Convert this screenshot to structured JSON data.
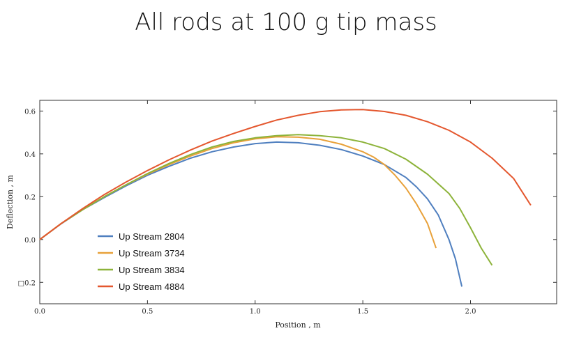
{
  "slide": {
    "title": "All rods at 100 g tip mass"
  },
  "chart_data": {
    "type": "line",
    "title": "All rods at 100 g tip mass",
    "xlabel": "Position , m",
    "ylabel": "Deflection , m",
    "xlim": [
      0,
      2.4
    ],
    "ylim": [
      -0.3,
      0.65
    ],
    "xticks": [
      0.0,
      0.5,
      1.0,
      1.5,
      2.0
    ],
    "xtick_labels": [
      "0.0",
      "0.5",
      "1.0",
      "1.5",
      "2.0"
    ],
    "yticks": [
      -0.2,
      0.0,
      0.2,
      0.4,
      0.6
    ],
    "ytick_labels": [
      "□0.2",
      "0.0",
      "0.2",
      "0.4",
      "0.6"
    ],
    "grid": false,
    "legend_position": "bottom-left",
    "series": [
      {
        "name": "Up Stream 2804",
        "color": "#4f7fbf",
        "x": [
          0,
          0.1,
          0.2,
          0.3,
          0.4,
          0.5,
          0.6,
          0.7,
          0.8,
          0.9,
          1.0,
          1.1,
          1.2,
          1.3,
          1.4,
          1.5,
          1.6,
          1.7,
          1.75,
          1.8,
          1.85,
          1.9,
          1.93,
          1.96
        ],
        "y": [
          0,
          0.074,
          0.14,
          0.196,
          0.25,
          0.3,
          0.342,
          0.38,
          0.41,
          0.432,
          0.448,
          0.455,
          0.452,
          0.44,
          0.42,
          0.39,
          0.35,
          0.29,
          0.245,
          0.19,
          0.115,
          0.0,
          -0.09,
          -0.22
        ]
      },
      {
        "name": "Up Stream 3734",
        "color": "#e8a13a",
        "x": [
          0,
          0.1,
          0.2,
          0.3,
          0.4,
          0.5,
          0.6,
          0.7,
          0.8,
          0.9,
          1.0,
          1.1,
          1.2,
          1.3,
          1.4,
          1.5,
          1.55,
          1.6,
          1.65,
          1.7,
          1.75,
          1.8,
          1.84
        ],
        "y": [
          0,
          0.075,
          0.14,
          0.2,
          0.255,
          0.305,
          0.35,
          0.39,
          0.425,
          0.452,
          0.47,
          0.48,
          0.478,
          0.468,
          0.445,
          0.41,
          0.385,
          0.35,
          0.3,
          0.24,
          0.165,
          0.075,
          -0.04
        ]
      },
      {
        "name": "Up Stream 3834",
        "color": "#8db33a",
        "x": [
          0,
          0.1,
          0.2,
          0.3,
          0.4,
          0.5,
          0.6,
          0.7,
          0.8,
          0.9,
          1.0,
          1.1,
          1.2,
          1.3,
          1.4,
          1.5,
          1.6,
          1.7,
          1.8,
          1.9,
          1.95,
          2.0,
          2.05,
          2.1
        ],
        "y": [
          0,
          0.075,
          0.14,
          0.2,
          0.255,
          0.308,
          0.355,
          0.397,
          0.432,
          0.458,
          0.475,
          0.485,
          0.49,
          0.485,
          0.475,
          0.455,
          0.425,
          0.375,
          0.305,
          0.215,
          0.145,
          0.055,
          -0.04,
          -0.12
        ]
      },
      {
        "name": "Up Stream 4884",
        "color": "#e4572e",
        "x": [
          0,
          0.1,
          0.2,
          0.3,
          0.4,
          0.5,
          0.6,
          0.7,
          0.8,
          0.9,
          1.0,
          1.1,
          1.2,
          1.3,
          1.4,
          1.5,
          1.6,
          1.7,
          1.8,
          1.9,
          2.0,
          2.1,
          2.2,
          2.28
        ],
        "y": [
          0,
          0.075,
          0.145,
          0.21,
          0.268,
          0.322,
          0.372,
          0.418,
          0.46,
          0.495,
          0.528,
          0.558,
          0.58,
          0.597,
          0.605,
          0.607,
          0.598,
          0.58,
          0.55,
          0.51,
          0.455,
          0.38,
          0.285,
          0.16
        ]
      }
    ]
  }
}
